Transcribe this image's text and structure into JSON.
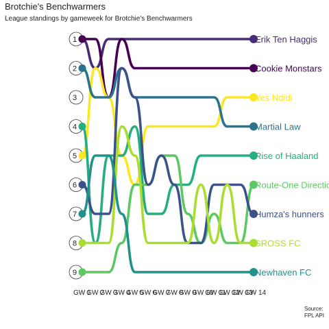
{
  "chart_data": {
    "type": "line",
    "title": "Brotchie's Benchwarmers",
    "subtitle": "League standings by gameweek for Brotchie's Benchwarmers",
    "x": [
      "GW 1",
      "GW 2",
      "GW 3",
      "GW 4",
      "GW 5",
      "GW 6",
      "GW 7",
      "GW 8",
      "GW 9",
      "GW 10",
      "GW 11",
      "GW 12",
      "GW 13",
      "GW 14"
    ],
    "rank_labels": [
      "1",
      "2",
      "3",
      "4",
      "5",
      "6",
      "7",
      "8",
      "9"
    ],
    "ylim": [
      1,
      9
    ],
    "y_reversed": true,
    "series": [
      {
        "name": "Erik Ten Haggis",
        "color": "#472C7A",
        "values": [
          1,
          2,
          1,
          1,
          1,
          1,
          1,
          1,
          1,
          1,
          1,
          1,
          1,
          1
        ]
      },
      {
        "name": "Cookie Monstars",
        "color": "#440154",
        "values": [
          1,
          1,
          3,
          1,
          2,
          2,
          2,
          2,
          2,
          2,
          2,
          2,
          2,
          2
        ]
      },
      {
        "name": "Yes Ndidi",
        "color": "#FDE725",
        "values": [
          5,
          2,
          3,
          5,
          6,
          4,
          4,
          4,
          4,
          4,
          4,
          3,
          3,
          3
        ]
      },
      {
        "name": "Martial Law",
        "color": "#2C728E",
        "values": [
          2,
          3,
          3,
          2,
          3,
          3,
          3,
          3,
          3,
          3,
          3,
          4,
          4,
          4
        ]
      },
      {
        "name": "Rise of Haaland",
        "color": "#27AD81",
        "values": [
          4,
          8,
          5,
          5,
          4,
          7,
          7,
          6,
          6,
          5,
          5,
          5,
          5,
          5
        ]
      },
      {
        "name": "Route-One Direction",
        "color": "#5DC863",
        "values": [
          9,
          9,
          9,
          8,
          6,
          6,
          5,
          5,
          7,
          8,
          7,
          8,
          8,
          6
        ]
      },
      {
        "name": "Humza's hunners",
        "color": "#3B528B",
        "values": [
          6,
          7,
          7,
          2,
          3,
          6,
          5,
          6,
          8,
          8,
          6,
          6,
          6,
          7
        ]
      },
      {
        "name": "SROSS FC",
        "color": "#AADC32",
        "values": [
          8,
          8,
          8,
          4,
          5,
          8,
          8,
          8,
          8,
          6,
          8,
          6,
          8,
          8
        ]
      },
      {
        "name": "Newhaven FC",
        "color": "#21918C",
        "values": [
          7,
          5,
          5,
          7,
          9,
          9,
          9,
          9,
          9,
          9,
          9,
          9,
          9,
          9
        ]
      }
    ]
  },
  "source": {
    "line1": "Source:",
    "line2": "FPL API"
  }
}
